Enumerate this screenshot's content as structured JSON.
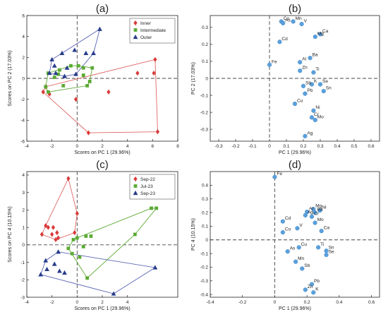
{
  "chart_data": [
    {
      "type": "scatter",
      "panel_label": "(a)",
      "xlabel": "Scores on PC 1 (29.96%)",
      "ylabel": "Scores on PC 2 (17.03%)",
      "xlim": [
        -4,
        8
      ],
      "ylim": [
        -6,
        6
      ],
      "xticks": [
        -4,
        -2,
        0,
        2,
        4,
        6,
        8
      ],
      "yticks": [
        -6,
        -4,
        -2,
        0,
        2,
        4,
        6
      ],
      "grid": false,
      "legend": "top-right",
      "series": [
        {
          "name": "Inner",
          "marker": "diamond",
          "color": "#d93a3a",
          "hull_color": "#e06666",
          "points": [
            [
              6.2,
              1.8
            ],
            [
              4.8,
              0.5
            ],
            [
              6.1,
              0.5
            ],
            [
              2.5,
              -1.3
            ],
            [
              -2.5,
              -0.8
            ],
            [
              -2.7,
              -1.3
            ],
            [
              -2.2,
              -1.5
            ],
            [
              -0.1,
              -2
            ],
            [
              0.9,
              -5.2
            ],
            [
              6.4,
              -5.1
            ]
          ]
        },
        {
          "name": "Intermediate",
          "marker": "square",
          "color": "#5aaa32",
          "hull_color": "#5aaa32",
          "points": [
            [
              -0.5,
              1.2
            ],
            [
              0.1,
              1.2
            ],
            [
              0.5,
              1
            ],
            [
              1.2,
              1
            ],
            [
              -1.4,
              0.8
            ],
            [
              -2.3,
              0.5
            ],
            [
              -1.5,
              0.4
            ],
            [
              0.5,
              0.3
            ],
            [
              -1.8,
              0.1
            ],
            [
              -1.1,
              -0.7
            ],
            [
              0.8,
              -0.7
            ],
            [
              1.0,
              -0.3
            ],
            [
              -2.5,
              -0.8
            ],
            [
              -2.3,
              -1.3
            ]
          ]
        },
        {
          "name": "Outer",
          "marker": "triangle",
          "color": "#283c8c",
          "hull_color": "#5a64b4",
          "points": [
            [
              1.8,
              4.7
            ],
            [
              -0.2,
              2.7
            ],
            [
              -1.2,
              2.4
            ],
            [
              0.7,
              2.4
            ],
            [
              1.3,
              2.4
            ],
            [
              -2.0,
              1.8
            ],
            [
              -1.8,
              1.2
            ],
            [
              -0.8,
              1.0
            ],
            [
              -2.2,
              0.5
            ],
            [
              -1.7,
              0.5
            ],
            [
              -0.1,
              0.4
            ],
            [
              -1.0,
              0.2
            ]
          ]
        }
      ]
    },
    {
      "type": "scatter",
      "panel_label": "(b)",
      "xlabel": "PC 1 (29.96%)",
      "ylabel": "PC 2 (17.03%)",
      "xlim": [
        -0.35,
        0.65
      ],
      "ylim": [
        -0.37,
        0.37
      ],
      "xticks": [
        -0.3,
        -0.2,
        -0.1,
        0,
        0.1,
        0.2,
        0.3,
        0.4,
        0.5,
        0.6
      ],
      "yticks": [
        -0.3,
        -0.2,
        -0.1,
        0,
        0.1,
        0.2,
        0.3
      ],
      "grid": false,
      "points": [
        {
          "label": "Co",
          "x": 0.07,
          "y": 0.335
        },
        {
          "label": "As",
          "x": 0.08,
          "y": 0.325
        },
        {
          "label": "Mn",
          "x": 0.14,
          "y": 0.335
        },
        {
          "label": "V",
          "x": 0.19,
          "y": 0.32
        },
        {
          "label": "Ca",
          "x": 0.3,
          "y": 0.26
        },
        {
          "label": "Mg",
          "x": 0.27,
          "y": 0.245
        },
        {
          "label": "Cd",
          "x": 0.06,
          "y": 0.215
        },
        {
          "label": "Ba",
          "x": 0.24,
          "y": 0.12
        },
        {
          "label": "Al",
          "x": 0.18,
          "y": 0.095
        },
        {
          "label": "Fe",
          "x": 0.0,
          "y": 0.08
        },
        {
          "label": "Zn",
          "x": 0.18,
          "y": 0.045
        },
        {
          "label": "Ti",
          "x": 0.26,
          "y": 0.035
        },
        {
          "label": "K",
          "x": 0.25,
          "y": -0.035
        },
        {
          "label": "Se",
          "x": 0.3,
          "y": -0.035
        },
        {
          "label": "Sb",
          "x": 0.2,
          "y": -0.045
        },
        {
          "label": "Sn",
          "x": 0.32,
          "y": -0.075
        },
        {
          "label": "Pb",
          "x": 0.21,
          "y": -0.09
        },
        {
          "label": "Cu",
          "x": 0.15,
          "y": -0.15
        },
        {
          "label": "Ni",
          "x": 0.26,
          "y": -0.19
        },
        {
          "label": "Cr",
          "x": 0.25,
          "y": -0.23
        },
        {
          "label": "Mo",
          "x": 0.27,
          "y": -0.245
        },
        {
          "label": "Ag",
          "x": 0.21,
          "y": -0.34
        }
      ]
    },
    {
      "type": "scatter",
      "panel_label": "(c)",
      "xlabel": "Scores on PC 1 (29.96%)",
      "ylabel": "Scores on PC 4 (10.15%)",
      "xlim": [
        -4,
        8
      ],
      "ylim": [
        -3,
        4.2
      ],
      "xticks": [
        -4,
        -2,
        0,
        2,
        4
      ],
      "yticks": [
        -3,
        -2,
        -1,
        0,
        1,
        2,
        3,
        4
      ],
      "grid": false,
      "legend": "top-right",
      "series": [
        {
          "name": "Sep-22",
          "marker": "diamond",
          "color": "#d93a3a",
          "hull_color": "#e06666",
          "points": [
            [
              -0.7,
              3.8
            ],
            [
              0.0,
              1.8
            ],
            [
              -2.5,
              1.1
            ],
            [
              -2.3,
              1.0
            ],
            [
              -1.9,
              1.0
            ],
            [
              -1.6,
              0.7
            ],
            [
              -1.5,
              0.4
            ],
            [
              -2.0,
              0.6
            ],
            [
              -2.8,
              0.6
            ],
            [
              -1.7,
              0.3
            ],
            [
              -0.2,
              0.7
            ]
          ]
        },
        {
          "name": "Jul-23",
          "marker": "square",
          "color": "#5aaa32",
          "hull_color": "#5aaa32",
          "points": [
            [
              6.3,
              2.1
            ],
            [
              5.9,
              2.1
            ],
            [
              4.6,
              0.6
            ],
            [
              0.0,
              0.4
            ],
            [
              0.7,
              0.5
            ],
            [
              1.1,
              0.5
            ],
            [
              -0.3,
              0.3
            ],
            [
              0.5,
              -0.1
            ],
            [
              -0.7,
              -0.2
            ],
            [
              -0.4,
              -0.5
            ],
            [
              0.2,
              -0.7
            ],
            [
              0.8,
              -1.9
            ]
          ]
        },
        {
          "name": "Sep-23",
          "marker": "triangle",
          "color": "#283c8c",
          "hull_color": "#5a64b4",
          "points": [
            [
              -1.5,
              -0.4
            ],
            [
              -2.5,
              -0.9
            ],
            [
              -1.8,
              -1.1
            ],
            [
              -2.4,
              -1.4
            ],
            [
              -1.4,
              -1.5
            ],
            [
              -1.0,
              -1.6
            ],
            [
              -2.9,
              -1.7
            ],
            [
              2.9,
              -2.8
            ],
            [
              6.2,
              -1.3
            ]
          ]
        }
      ]
    },
    {
      "type": "scatter",
      "panel_label": "(d)",
      "xlabel": "PC 1 (29.96%)",
      "ylabel": "PC 4 (10.15%)",
      "xlim": [
        -0.4,
        0.65
      ],
      "ylim": [
        -0.42,
        0.5
      ],
      "xticks": [
        -0.4,
        -0.2,
        0,
        0.2,
        0.4,
        0.6
      ],
      "yticks": [
        -0.4,
        -0.3,
        -0.2,
        -0.1,
        0,
        0.1,
        0.2,
        0.3,
        0.4
      ],
      "grid": false,
      "points": [
        {
          "label": "Fe",
          "x": 0.0,
          "y": 0.46
        },
        {
          "label": "Mg",
          "x": 0.24,
          "y": 0.225
        },
        {
          "label": "Ni",
          "x": 0.28,
          "y": 0.215
        },
        {
          "label": "Al",
          "x": 0.2,
          "y": 0.205
        },
        {
          "label": "Ba",
          "x": 0.25,
          "y": 0.2
        },
        {
          "label": "Ag",
          "x": 0.19,
          "y": 0.18
        },
        {
          "label": "Cr",
          "x": 0.23,
          "y": 0.17
        },
        {
          "label": "Cd",
          "x": 0.05,
          "y": 0.135
        },
        {
          "label": "Mo",
          "x": 0.25,
          "y": 0.125
        },
        {
          "label": "V",
          "x": 0.14,
          "y": 0.085
        },
        {
          "label": "Ca",
          "x": 0.29,
          "y": 0.065
        },
        {
          "label": "Co",
          "x": 0.05,
          "y": 0.055
        },
        {
          "label": "Cu",
          "x": 0.15,
          "y": -0.055
        },
        {
          "label": "Ti",
          "x": 0.27,
          "y": -0.055
        },
        {
          "label": "As",
          "x": 0.08,
          "y": -0.085
        },
        {
          "label": "Sn",
          "x": 0.32,
          "y": -0.08
        },
        {
          "label": "Se",
          "x": 0.32,
          "y": -0.11
        },
        {
          "label": "Mn",
          "x": 0.13,
          "y": -0.16
        },
        {
          "label": "Sb",
          "x": 0.17,
          "y": -0.21
        },
        {
          "label": "Pb",
          "x": 0.23,
          "y": -0.325
        },
        {
          "label": "Zn",
          "x": 0.19,
          "y": -0.365
        },
        {
          "label": "K",
          "x": 0.24,
          "y": -0.385
        }
      ]
    }
  ]
}
